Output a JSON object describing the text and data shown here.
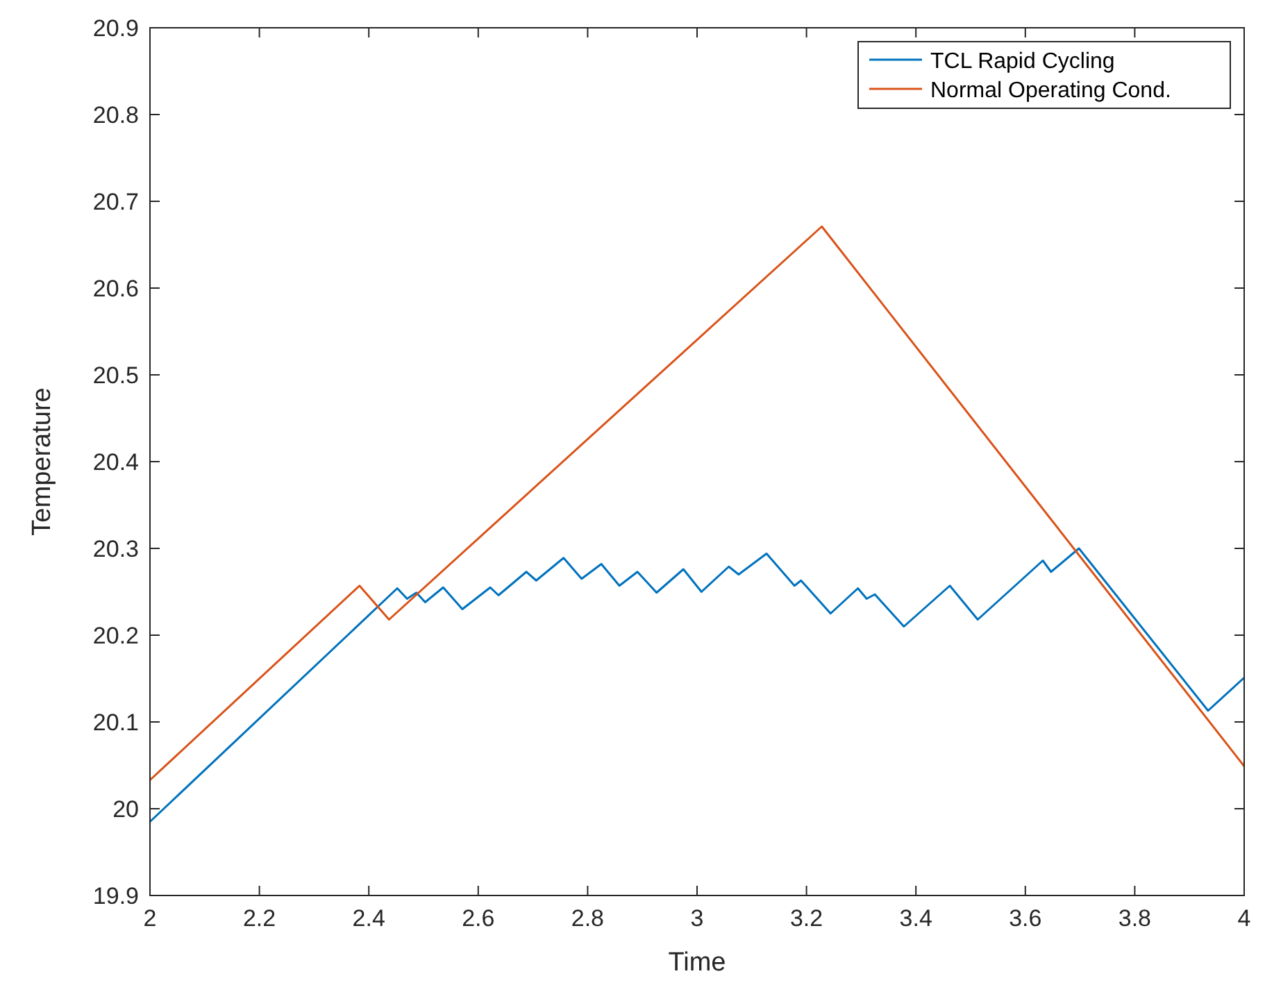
{
  "chart_data": {
    "type": "line",
    "xlabel": "Time",
    "ylabel": "Temperature",
    "xlim": [
      2,
      4
    ],
    "ylim": [
      19.9,
      20.9
    ],
    "xticks": [
      2,
      2.2,
      2.4,
      2.6,
      2.8,
      3,
      3.2,
      3.4,
      3.6,
      3.8,
      4
    ],
    "yticks": [
      19.9,
      20,
      20.1,
      20.2,
      20.3,
      20.4,
      20.5,
      20.6,
      20.7,
      20.8,
      20.9
    ],
    "legend": "top right",
    "grid": false,
    "series": [
      {
        "name": "TCL Rapid Cycling",
        "color": "#0072bd",
        "x": [
          2,
          2.452,
          2.47,
          2.487,
          2.503,
          2.536,
          2.571,
          2.622,
          2.637,
          2.688,
          2.706,
          2.756,
          2.789,
          2.825,
          2.858,
          2.891,
          2.926,
          2.975,
          3.008,
          3.058,
          3.076,
          3.127,
          3.178,
          3.19,
          3.244,
          3.294,
          3.31,
          3.325,
          3.378,
          3.462,
          3.513,
          3.632,
          3.647,
          3.698,
          3.934,
          4
        ],
        "values": [
          19.985,
          20.254,
          20.242,
          20.249,
          20.238,
          20.255,
          20.23,
          20.255,
          20.246,
          20.273,
          20.263,
          20.289,
          20.265,
          20.282,
          20.257,
          20.273,
          20.249,
          20.276,
          20.25,
          20.279,
          20.27,
          20.294,
          20.257,
          20.263,
          20.225,
          20.254,
          20.242,
          20.247,
          20.21,
          20.257,
          20.218,
          20.286,
          20.273,
          20.3,
          20.113,
          20.151
        ]
      },
      {
        "name": "Normal Operating Cond.",
        "color": "#d95319",
        "x": [
          2,
          2.383,
          2.437,
          3.228,
          4
        ],
        "values": [
          20.033,
          20.257,
          20.218,
          20.671,
          20.049
        ]
      }
    ]
  }
}
